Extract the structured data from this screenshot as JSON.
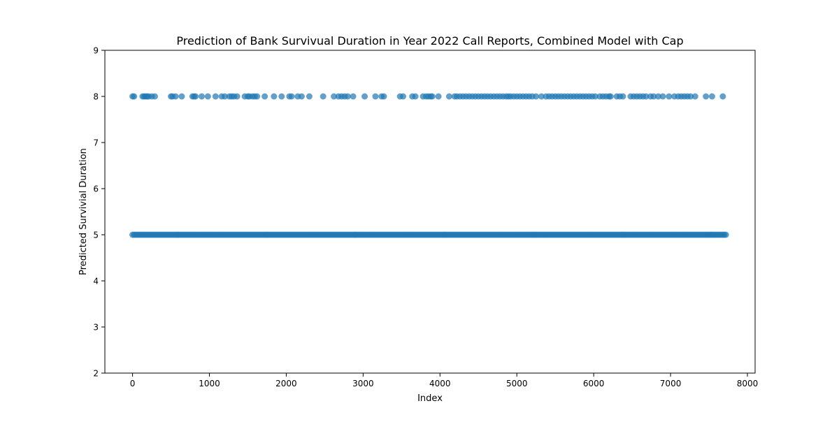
{
  "chart_data": {
    "type": "scatter",
    "title": "Prediction of Bank Survivual Duration in Year 2022 Call Reports, Combined Model with Cap",
    "xlabel": "Index",
    "ylabel": "Predicted Survivial Duration",
    "xlim": [
      -360,
      8100
    ],
    "ylim": [
      2,
      9
    ],
    "xticks": [
      0,
      1000,
      2000,
      3000,
      4000,
      5000,
      6000,
      7000,
      8000
    ],
    "yticks": [
      2,
      3,
      4,
      5,
      6,
      7,
      8,
      9
    ],
    "grid": false,
    "legend": "none",
    "marker_color": "#1f77b4",
    "marker_alpha": 0.7,
    "series": [
      {
        "baseline_value": 5,
        "baseline_x_range": [
          0,
          7730
        ],
        "high_value": 8,
        "high_x": [
          0,
          20,
          130,
          150,
          170,
          190,
          210,
          250,
          290,
          500,
          520,
          560,
          640,
          780,
          800,
          820,
          900,
          980,
          1080,
          1160,
          1200,
          1260,
          1290,
          1320,
          1360,
          1460,
          1500,
          1520,
          1560,
          1590,
          1620,
          1720,
          1840,
          1940,
          2040,
          2070,
          2150,
          2200,
          2300,
          2480,
          2620,
          2680,
          2720,
          2760,
          2800,
          2870,
          3020,
          3160,
          3240,
          3270,
          3480,
          3520,
          3640,
          3680,
          3780,
          3820,
          3850,
          3880,
          3900,
          3980,
          4120,
          4190,
          4220,
          4260,
          4300,
          4340,
          4380,
          4420,
          4460,
          4500,
          4540,
          4580,
          4620,
          4660,
          4700,
          4740,
          4780,
          4820,
          4860,
          4890,
          4920,
          4960,
          5000,
          5040,
          5080,
          5120,
          5160,
          5200,
          5250,
          5320,
          5380,
          5420,
          5460,
          5500,
          5540,
          5580,
          5620,
          5660,
          5700,
          5740,
          5780,
          5820,
          5860,
          5900,
          5940,
          5980,
          6020,
          6080,
          6120,
          6160,
          6200,
          6220,
          6300,
          6340,
          6380,
          6480,
          6520,
          6560,
          6600,
          6640,
          6680,
          6740,
          6780,
          6840,
          6900,
          6980,
          7050,
          7100,
          7140,
          7180,
          7220,
          7260,
          7320,
          7460,
          7540,
          7680
        ]
      }
    ]
  }
}
